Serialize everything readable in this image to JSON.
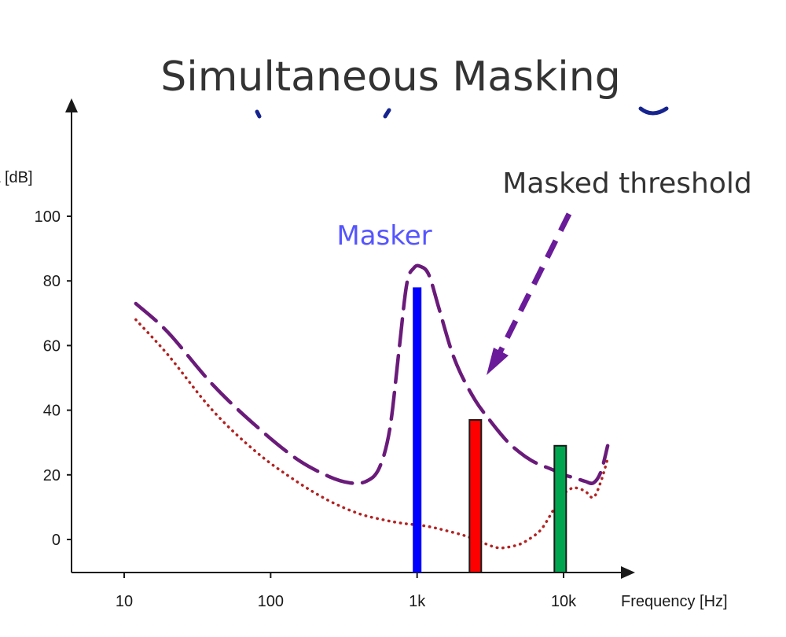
{
  "slide": {
    "title": "Simultaneous Masking"
  },
  "chart_data": {
    "type": "line",
    "x_scale": "log",
    "xlim": [
      6,
      25000
    ],
    "ylim": [
      -10,
      135
    ],
    "xlabel": "Frequency [Hz]",
    "ylabel": "L [dB]",
    "x_ticks": [
      {
        "value": 10,
        "label": "10"
      },
      {
        "value": 100,
        "label": "100"
      },
      {
        "value": 1000,
        "label": "1k"
      },
      {
        "value": 10000,
        "label": "10k"
      }
    ],
    "y_ticks": [
      {
        "value": 0,
        "label": "0"
      },
      {
        "value": 20,
        "label": "20"
      },
      {
        "value": 40,
        "label": "40"
      },
      {
        "value": 60,
        "label": "60"
      },
      {
        "value": 80,
        "label": "80"
      },
      {
        "value": 100,
        "label": "100"
      }
    ],
    "grid": false,
    "series": [
      {
        "style": "dashed",
        "color": "#6a1b7a",
        "x": [
          12,
          20,
          40,
          80,
          150,
          250,
          350,
          450,
          550,
          650,
          750,
          850,
          950,
          1050,
          1200,
          1400,
          1700,
          2000,
          2500,
          3000,
          4000,
          5000,
          6000,
          7000,
          8000,
          9000,
          10000,
          12000,
          14000,
          16000,
          18000,
          20000
        ],
        "y": [
          73,
          64,
          48,
          35,
          25,
          19.5,
          17.5,
          18,
          22,
          34,
          58,
          79,
          84,
          84.5,
          82,
          72,
          59,
          51,
          43,
          38,
          31,
          27,
          24.5,
          23,
          22,
          21,
          20,
          19,
          18,
          17.5,
          21,
          29
        ]
      },
      {
        "style": "dotted",
        "color": "#b22222",
        "x": [
          12,
          20,
          40,
          80,
          150,
          250,
          400,
          600,
          800,
          1000,
          1200,
          1500,
          2000,
          2500,
          3000,
          3500,
          4000,
          5000,
          6000,
          7000,
          8000,
          9000,
          10000,
          11000,
          12000,
          14000,
          16000,
          18000,
          20000
        ],
        "y": [
          68,
          57,
          40,
          27,
          18,
          12,
          8,
          6,
          5,
          4.5,
          4,
          3,
          1.5,
          0,
          -1.5,
          -2.5,
          -2.5,
          -1.5,
          0.5,
          3,
          7,
          11,
          14,
          15.5,
          16,
          15,
          13,
          18,
          25
        ]
      }
    ],
    "bars": [
      {
        "x": 1000,
        "y": 78,
        "color": "#0000ff",
        "outline": "#0000ff"
      },
      {
        "x": 2500,
        "y": 37,
        "color": "#ff0000",
        "outline": "#1a1a1a"
      },
      {
        "x": 9500,
        "y": 29,
        "color": "#00a550",
        "outline": "#1a1a1a"
      }
    ],
    "annotations": {
      "masker": {
        "text": "Masker",
        "color": "#5555ff"
      },
      "masked_threshold": {
        "text": "Masked threshold",
        "arrow_color": "#6a1b9a"
      }
    }
  }
}
